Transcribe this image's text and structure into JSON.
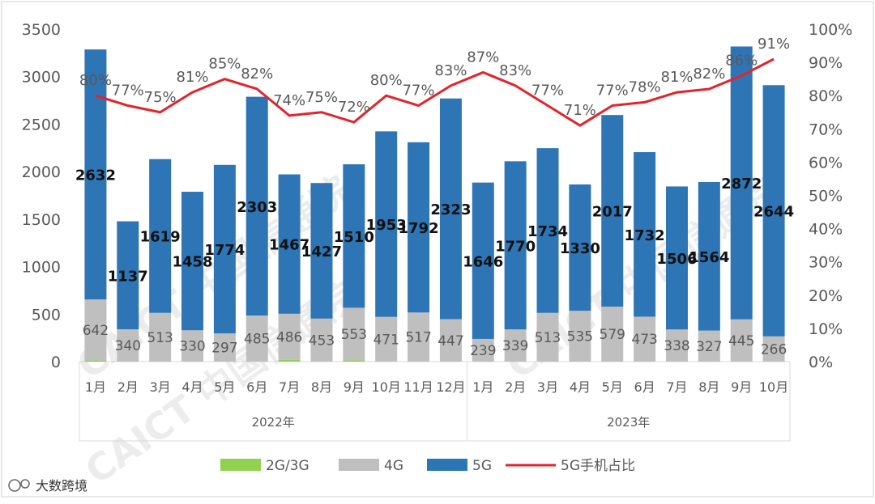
{
  "chart_data": {
    "type": "bar",
    "stacked": true,
    "groups": [
      {
        "label": "2022年",
        "categories": [
          "1月",
          "2月",
          "3月",
          "4月",
          "5月",
          "6月",
          "7月",
          "8月",
          "9月",
          "10月",
          "11月",
          "12月"
        ]
      },
      {
        "label": "2023年",
        "categories": [
          "1月",
          "2月",
          "3月",
          "4月",
          "5月",
          "6月",
          "7月",
          "8月",
          "9月",
          "10月"
        ]
      }
    ],
    "categories": [
      "1月",
      "2月",
      "3月",
      "4月",
      "5月",
      "6月",
      "7月",
      "8月",
      "9月",
      "10月",
      "11月",
      "12月",
      "1月",
      "2月",
      "3月",
      "4月",
      "5月",
      "6月",
      "7月",
      "8月",
      "9月",
      "10月"
    ],
    "series": [
      {
        "name": "2G/3G",
        "color": "#92d050",
        "values": [
          12,
          0,
          0,
          0,
          0,
          0,
          18,
          0,
          14,
          0,
          0,
          0,
          0,
          0,
          0,
          0,
          0,
          0,
          0,
          0,
          0,
          0
        ]
      },
      {
        "name": "4G",
        "color": "#bfbfbf",
        "values": [
          642,
          340,
          513,
          330,
          297,
          485,
          486,
          453,
          553,
          471,
          517,
          447,
          239,
          339,
          513,
          535,
          579,
          473,
          338,
          327,
          445,
          266
        ]
      },
      {
        "name": "5G",
        "color": "#2e75b6",
        "values": [
          2632,
          1137,
          1619,
          1458,
          1774,
          2303,
          1467,
          1427,
          1510,
          1953,
          1792,
          2323,
          1646,
          1770,
          1734,
          1330,
          2017,
          1732,
          1506,
          1564,
          2872,
          2644
        ]
      }
    ],
    "line": {
      "name": "5G手机占比",
      "color": "#e3242b",
      "values": [
        80,
        77,
        75,
        81,
        85,
        82,
        74,
        75,
        72,
        80,
        77,
        83,
        87,
        83,
        77,
        71,
        77,
        78,
        81,
        82,
        86,
        91
      ],
      "labels": [
        "80%",
        "77%",
        "75%",
        "81%",
        "85%",
        "82%",
        "74%",
        "75%",
        "72%",
        "80%",
        "77%",
        "83%",
        "87%",
        "83%",
        "77%",
        "71%",
        "77%",
        "78%",
        "81%",
        "82%",
        "86%",
        "91%"
      ]
    },
    "y_left": {
      "min": 0,
      "max": 3500,
      "ticks": [
        "0",
        "500",
        "1000",
        "1500",
        "2000",
        "2500",
        "3000",
        "3500"
      ]
    },
    "y_right": {
      "min": 0,
      "max": 100,
      "ticks": [
        "0%",
        "10%",
        "20%",
        "30%",
        "40%",
        "50%",
        "60%",
        "70%",
        "80%",
        "90%",
        "100%"
      ]
    },
    "legend": [
      "2G/3G",
      "4G",
      "5G",
      "5G手机占比"
    ],
    "legend_position": "bottom",
    "watermark": "CAICT 中国信通院"
  },
  "brand": {
    "text": "大数跨境"
  }
}
